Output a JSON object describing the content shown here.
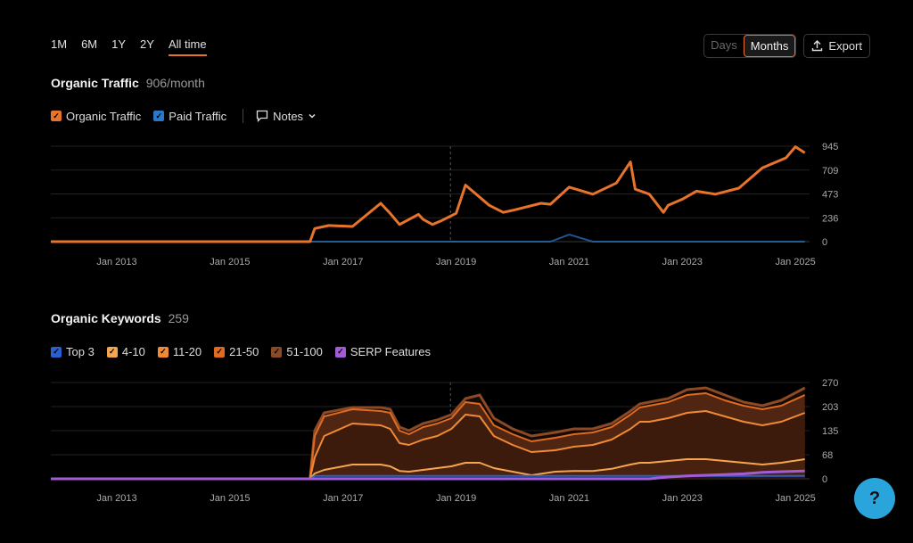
{
  "tabs": [
    {
      "label": "1M"
    },
    {
      "label": "6M"
    },
    {
      "label": "1Y"
    },
    {
      "label": "2Y"
    },
    {
      "label": "All time"
    }
  ],
  "toggle": {
    "days": "Days",
    "months": "Months"
  },
  "export_label": "Export",
  "traffic": {
    "title": "Organic Traffic",
    "subtitle": "906/month",
    "legend_organic": "Organic Traffic",
    "legend_paid": "Paid Traffic",
    "notes": "Notes"
  },
  "keywords": {
    "title": "Organic Keywords",
    "subtitle": "259",
    "legend": [
      "Top 3",
      "4-10",
      "11-20",
      "21-50",
      "51-100",
      "SERP Features"
    ]
  },
  "help_label": "?",
  "colors": {
    "organic": "#e8732a",
    "paid": "#2a78c8",
    "top3": "#2a5fd0",
    "k4_10": "#f5a550",
    "k11_20": "#f08a35",
    "k21_50": "#e06a20",
    "k51_100": "#8a4a25",
    "serp": "#a25cd8",
    "accent": "#e8732a"
  },
  "chart_data": [
    {
      "type": "line",
      "title": "Organic Traffic",
      "x_ticks": [
        "Jan 2013",
        "Jan 2015",
        "Jan 2017",
        "Jan 2019",
        "Jan 2021",
        "Jan 2023",
        "Jan 2025"
      ],
      "y_ticks": [
        "945",
        "709",
        "473",
        "236",
        "0"
      ],
      "ylim": [
        0,
        945
      ],
      "grid": true,
      "x": [
        "2011-11",
        "2016-06",
        "2016-07",
        "2016-10",
        "2017-03",
        "2017-09",
        "2017-11",
        "2018-01",
        "2018-05",
        "2018-06",
        "2018-08",
        "2018-10",
        "2019-01",
        "2019-03",
        "2019-08",
        "2019-11",
        "2020-01",
        "2020-07",
        "2020-09",
        "2021-01",
        "2021-06",
        "2021-11",
        "2022-02",
        "2022-03",
        "2022-06",
        "2022-09",
        "2022-10",
        "2023-01",
        "2023-04",
        "2023-08",
        "2024-01",
        "2024-06",
        "2024-11",
        "2025-01",
        "2025-03"
      ],
      "series": [
        {
          "name": "Organic Traffic",
          "values": [
            0,
            0,
            130,
            160,
            150,
            380,
            280,
            170,
            270,
            220,
            170,
            210,
            280,
            560,
            360,
            290,
            310,
            380,
            370,
            540,
            470,
            580,
            790,
            520,
            470,
            290,
            360,
            420,
            500,
            470,
            530,
            730,
            830,
            940,
            880
          ]
        },
        {
          "name": "Paid Traffic",
          "values": [
            0,
            0,
            0,
            0,
            0,
            0,
            0,
            0,
            0,
            0,
            0,
            0,
            0,
            0,
            0,
            0,
            0,
            0,
            0,
            70,
            0,
            0,
            0,
            0,
            0,
            0,
            0,
            0,
            0,
            0,
            0,
            0,
            0,
            0,
            0
          ]
        }
      ]
    },
    {
      "type": "area",
      "title": "Organic Keywords",
      "x_ticks": [
        "Jan 2013",
        "Jan 2015",
        "Jan 2017",
        "Jan 2019",
        "Jan 2021",
        "Jan 2023",
        "Jan 2025"
      ],
      "y_ticks": [
        "270",
        "203",
        "135",
        "68",
        "0"
      ],
      "ylim": [
        0,
        270
      ],
      "grid": true,
      "x": [
        "2011-11",
        "2016-06",
        "2016-07",
        "2016-09",
        "2017-03",
        "2017-09",
        "2017-11",
        "2018-01",
        "2018-03",
        "2018-06",
        "2018-09",
        "2018-12",
        "2019-03",
        "2019-06",
        "2019-09",
        "2020-01",
        "2020-05",
        "2020-10",
        "2021-02",
        "2021-06",
        "2021-10",
        "2022-02",
        "2022-04",
        "2022-06",
        "2022-10",
        "2023-02",
        "2023-06",
        "2023-10",
        "2024-02",
        "2024-06",
        "2024-10",
        "2025-03"
      ],
      "series": [
        {
          "name": "Top 3",
          "values": [
            0,
            0,
            8,
            8,
            8,
            8,
            8,
            8,
            8,
            8,
            8,
            8,
            8,
            8,
            8,
            8,
            8,
            8,
            8,
            8,
            8,
            8,
            8,
            8,
            8,
            8,
            8,
            8,
            8,
            8,
            8,
            8
          ]
        },
        {
          "name": "4-10",
          "values": [
            0,
            0,
            15,
            25,
            40,
            40,
            35,
            22,
            20,
            25,
            30,
            35,
            45,
            45,
            30,
            20,
            10,
            20,
            22,
            22,
            28,
            40,
            45,
            45,
            50,
            55,
            55,
            50,
            45,
            40,
            45,
            55
          ]
        },
        {
          "name": "11-20",
          "values": [
            0,
            0,
            60,
            120,
            155,
            150,
            140,
            100,
            95,
            110,
            120,
            140,
            180,
            175,
            120,
            95,
            75,
            80,
            90,
            95,
            110,
            140,
            160,
            160,
            170,
            185,
            190,
            175,
            160,
            150,
            160,
            185
          ]
        },
        {
          "name": "21-50",
          "values": [
            0,
            0,
            120,
            175,
            195,
            190,
            185,
            135,
            125,
            145,
            155,
            170,
            215,
            210,
            150,
            125,
            105,
            115,
            125,
            130,
            145,
            180,
            200,
            205,
            215,
            235,
            240,
            220,
            205,
            195,
            205,
            235
          ]
        },
        {
          "name": "51-100",
          "values": [
            0,
            0,
            135,
            185,
            200,
            200,
            195,
            145,
            135,
            155,
            165,
            180,
            225,
            235,
            170,
            140,
            120,
            130,
            140,
            140,
            155,
            190,
            210,
            215,
            225,
            250,
            255,
            235,
            215,
            205,
            220,
            255
          ]
        },
        {
          "name": "SERP Features",
          "values": [
            0,
            0,
            0,
            0,
            0,
            0,
            0,
            0,
            0,
            0,
            0,
            0,
            0,
            0,
            0,
            0,
            0,
            0,
            0,
            0,
            0,
            0,
            0,
            0,
            5,
            8,
            10,
            12,
            14,
            18,
            20,
            22
          ]
        }
      ]
    }
  ]
}
